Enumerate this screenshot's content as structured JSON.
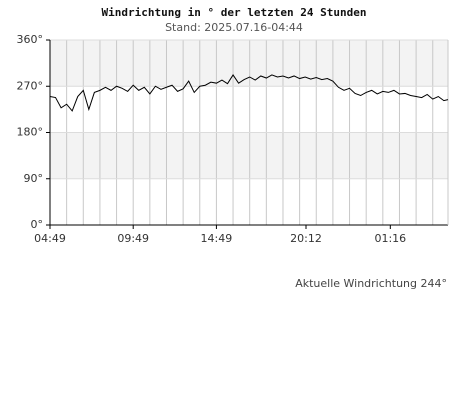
{
  "chart_data": {
    "type": "line",
    "title": "Windrichtung in ° der letzten 24 Stunden",
    "subtitle": "Stand: 2025.07.16-04:44",
    "annotation": "Aktuelle Windrichtung 244°",
    "x": [
      "04:49",
      "05:09",
      "05:29",
      "05:49",
      "06:09",
      "06:29",
      "06:49",
      "07:09",
      "07:29",
      "07:49",
      "08:09",
      "08:29",
      "08:49",
      "09:09",
      "09:29",
      "09:49",
      "10:09",
      "10:29",
      "10:49",
      "11:09",
      "11:29",
      "11:49",
      "12:09",
      "12:29",
      "12:49",
      "13:09",
      "13:29",
      "13:49",
      "14:09",
      "14:29",
      "14:49",
      "15:09",
      "15:29",
      "15:49",
      "16:09",
      "16:29",
      "16:49",
      "17:09",
      "17:29",
      "17:49",
      "18:09",
      "18:29",
      "18:49",
      "19:09",
      "19:29",
      "19:49",
      "20:09",
      "20:29",
      "20:49",
      "21:09",
      "21:29",
      "21:49",
      "22:09",
      "22:29",
      "22:49",
      "23:09",
      "23:29",
      "23:49",
      "00:09",
      "00:29",
      "00:49",
      "01:09",
      "01:29",
      "01:49",
      "02:09",
      "02:29",
      "02:49",
      "03:09",
      "03:29",
      "03:49",
      "04:09",
      "04:29",
      "04:44"
    ],
    "series": [
      {
        "color": "#000000",
        "values": [
          250,
          248,
          228,
          235,
          222,
          250,
          262,
          225,
          258,
          262,
          268,
          262,
          270,
          266,
          260,
          272,
          262,
          268,
          255,
          270,
          264,
          268,
          272,
          260,
          265,
          280,
          258,
          270,
          272,
          278,
          276,
          282,
          275,
          292,
          276,
          283,
          288,
          282,
          290,
          286,
          292,
          288,
          290,
          286,
          290,
          285,
          288,
          284,
          287,
          283,
          285,
          280,
          268,
          262,
          266,
          256,
          252,
          258,
          262,
          255,
          260,
          258,
          262,
          255,
          256,
          252,
          250,
          248,
          254,
          245,
          250,
          242,
          244
        ]
      }
    ],
    "xlim": [
      "04:49",
      "04:44"
    ],
    "xticks": [
      "04:49",
      "09:49",
      "14:49",
      "20:12",
      "01:16"
    ],
    "ylim": [
      0,
      360
    ],
    "yticks": [
      {
        "value": 0,
        "label": "0°"
      },
      {
        "value": 90,
        "label": "90°"
      },
      {
        "value": 180,
        "label": "180°"
      },
      {
        "value": 270,
        "label": "270°"
      },
      {
        "value": 360,
        "label": "360°"
      }
    ],
    "grid": true
  }
}
